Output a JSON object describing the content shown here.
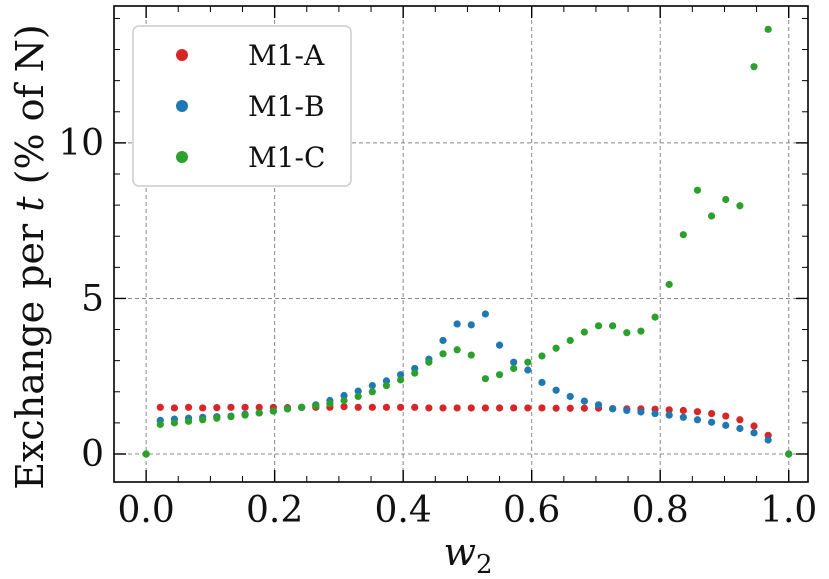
{
  "chart_data": {
    "type": "scatter",
    "title": "",
    "xlabel": "w",
    "xlabel_subscript": "2",
    "ylabel": "Exchange per t (% of N)",
    "ylabel_parts": {
      "prefix": "Exchange per ",
      "var": "t",
      "suffix": " (% of N)"
    },
    "xlim": [
      -0.05,
      1.03
    ],
    "ylim": [
      -0.9,
      14.4
    ],
    "xticks": [
      0.0,
      0.2,
      0.4,
      0.6,
      0.8,
      1.0
    ],
    "xtick_labels": [
      "0.0",
      "0.2",
      "0.4",
      "0.6",
      "0.8",
      "1.0"
    ],
    "yticks": [
      0,
      5,
      10
    ],
    "ytick_labels": [
      "0",
      "5",
      "10"
    ],
    "grid": true,
    "legend_position": "top-left",
    "series": [
      {
        "name": "M1-A",
        "color": "#d62728",
        "points": [
          [
            0.0,
            0.0
          ],
          [
            0.022,
            1.5
          ],
          [
            0.044,
            1.48
          ],
          [
            0.066,
            1.5
          ],
          [
            0.088,
            1.48
          ],
          [
            0.11,
            1.49
          ],
          [
            0.132,
            1.5
          ],
          [
            0.154,
            1.5
          ],
          [
            0.176,
            1.5
          ],
          [
            0.198,
            1.5
          ],
          [
            0.22,
            1.49
          ],
          [
            0.242,
            1.5
          ],
          [
            0.264,
            1.5
          ],
          [
            0.286,
            1.5
          ],
          [
            0.308,
            1.52
          ],
          [
            0.33,
            1.5
          ],
          [
            0.352,
            1.5
          ],
          [
            0.374,
            1.5
          ],
          [
            0.396,
            1.5
          ],
          [
            0.418,
            1.5
          ],
          [
            0.44,
            1.48
          ],
          [
            0.462,
            1.48
          ],
          [
            0.484,
            1.48
          ],
          [
            0.506,
            1.48
          ],
          [
            0.528,
            1.48
          ],
          [
            0.55,
            1.48
          ],
          [
            0.572,
            1.48
          ],
          [
            0.594,
            1.48
          ],
          [
            0.616,
            1.48
          ],
          [
            0.638,
            1.47
          ],
          [
            0.66,
            1.47
          ],
          [
            0.682,
            1.47
          ],
          [
            0.704,
            1.47
          ],
          [
            0.726,
            1.46
          ],
          [
            0.748,
            1.45
          ],
          [
            0.77,
            1.45
          ],
          [
            0.792,
            1.44
          ],
          [
            0.814,
            1.42
          ],
          [
            0.836,
            1.4
          ],
          [
            0.858,
            1.36
          ],
          [
            0.88,
            1.3
          ],
          [
            0.902,
            1.22
          ],
          [
            0.924,
            1.1
          ],
          [
            0.946,
            0.9
          ],
          [
            0.968,
            0.6
          ],
          [
            1.0,
            0.0
          ]
        ]
      },
      {
        "name": "M1-B",
        "color": "#1f77b4",
        "points": [
          [
            0.0,
            0.0
          ],
          [
            0.022,
            1.08
          ],
          [
            0.044,
            1.12
          ],
          [
            0.066,
            1.15
          ],
          [
            0.088,
            1.18
          ],
          [
            0.11,
            1.2
          ],
          [
            0.132,
            1.22
          ],
          [
            0.154,
            1.28
          ],
          [
            0.176,
            1.32
          ],
          [
            0.198,
            1.38
          ],
          [
            0.22,
            1.45
          ],
          [
            0.242,
            1.5
          ],
          [
            0.264,
            1.58
          ],
          [
            0.286,
            1.72
          ],
          [
            0.308,
            1.88
          ],
          [
            0.33,
            2.02
          ],
          [
            0.352,
            2.2
          ],
          [
            0.374,
            2.35
          ],
          [
            0.396,
            2.55
          ],
          [
            0.418,
            2.75
          ],
          [
            0.44,
            3.05
          ],
          [
            0.462,
            3.65
          ],
          [
            0.484,
            4.18
          ],
          [
            0.506,
            4.15
          ],
          [
            0.528,
            4.5
          ],
          [
            0.55,
            3.5
          ],
          [
            0.572,
            2.95
          ],
          [
            0.594,
            2.7
          ],
          [
            0.616,
            2.3
          ],
          [
            0.638,
            2.05
          ],
          [
            0.66,
            1.85
          ],
          [
            0.682,
            1.7
          ],
          [
            0.704,
            1.58
          ],
          [
            0.726,
            1.45
          ],
          [
            0.748,
            1.4
          ],
          [
            0.77,
            1.35
          ],
          [
            0.792,
            1.3
          ],
          [
            0.814,
            1.25
          ],
          [
            0.836,
            1.18
          ],
          [
            0.858,
            1.1
          ],
          [
            0.88,
            1.02
          ],
          [
            0.902,
            0.92
          ],
          [
            0.924,
            0.82
          ],
          [
            0.946,
            0.68
          ],
          [
            0.968,
            0.45
          ],
          [
            1.0,
            0.0
          ]
        ]
      },
      {
        "name": "M1-C",
        "color": "#2ca02c",
        "points": [
          [
            0.0,
            0.0
          ],
          [
            0.022,
            0.95
          ],
          [
            0.044,
            1.0
          ],
          [
            0.066,
            1.05
          ],
          [
            0.088,
            1.1
          ],
          [
            0.11,
            1.15
          ],
          [
            0.132,
            1.2
          ],
          [
            0.154,
            1.25
          ],
          [
            0.176,
            1.32
          ],
          [
            0.198,
            1.38
          ],
          [
            0.22,
            1.45
          ],
          [
            0.242,
            1.5
          ],
          [
            0.264,
            1.55
          ],
          [
            0.286,
            1.62
          ],
          [
            0.308,
            1.72
          ],
          [
            0.33,
            1.85
          ],
          [
            0.352,
            2.0
          ],
          [
            0.374,
            2.2
          ],
          [
            0.396,
            2.38
          ],
          [
            0.418,
            2.6
          ],
          [
            0.44,
            2.95
          ],
          [
            0.462,
            3.22
          ],
          [
            0.484,
            3.35
          ],
          [
            0.506,
            3.18
          ],
          [
            0.528,
            2.42
          ],
          [
            0.55,
            2.55
          ],
          [
            0.572,
            2.75
          ],
          [
            0.594,
            2.95
          ],
          [
            0.616,
            3.15
          ],
          [
            0.638,
            3.4
          ],
          [
            0.66,
            3.65
          ],
          [
            0.682,
            3.92
          ],
          [
            0.704,
            4.12
          ],
          [
            0.726,
            4.12
          ],
          [
            0.748,
            3.9
          ],
          [
            0.77,
            3.95
          ],
          [
            0.792,
            4.4
          ],
          [
            0.814,
            5.45
          ],
          [
            0.836,
            7.05
          ],
          [
            0.858,
            8.48
          ],
          [
            0.88,
            7.65
          ],
          [
            0.902,
            8.18
          ],
          [
            0.924,
            7.98
          ],
          [
            0.946,
            12.45
          ],
          [
            0.968,
            13.65
          ],
          [
            1.0,
            0.0
          ]
        ]
      }
    ]
  }
}
